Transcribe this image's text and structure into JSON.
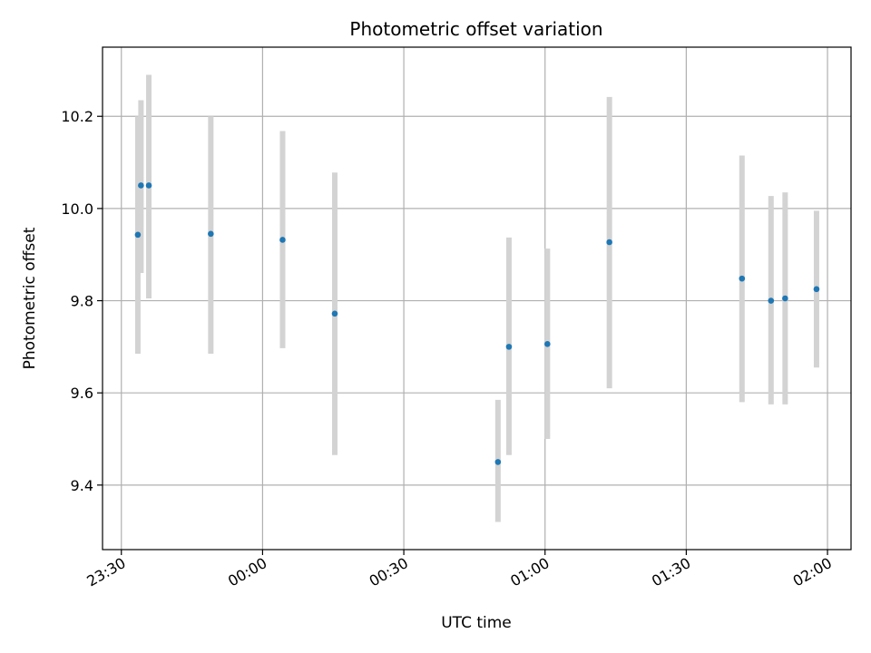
{
  "chart_data": {
    "type": "scatter",
    "title": "Photometric offset variation",
    "xlabel": "UTC time",
    "ylabel": "Photometric offset",
    "grid": true,
    "legend": "none",
    "xlim": [
      "23:26",
      "02:05"
    ],
    "ylim": [
      9.26,
      10.35
    ],
    "x_ticks": [
      "23:30",
      "00:00",
      "00:30",
      "01:00",
      "01:30",
      "02:00"
    ],
    "y_ticks": [
      "9.4",
      "9.6",
      "9.8",
      "10.0",
      "10.2"
    ],
    "series": [
      {
        "marker_color": "#1f77b4",
        "errorbar_color": "#d3d3d3",
        "points": [
          {
            "x": "23:33:30",
            "y": 9.943,
            "yerr_low": 9.685,
            "yerr_high": 10.2
          },
          {
            "x": "23:34:10",
            "y": 10.05,
            "yerr_low": 9.86,
            "yerr_high": 10.235
          },
          {
            "x": "23:35:50",
            "y": 10.05,
            "yerr_low": 9.805,
            "yerr_high": 10.29
          },
          {
            "x": "23:49:00",
            "y": 9.945,
            "yerr_low": 9.685,
            "yerr_high": 10.2
          },
          {
            "x": "00:04:15",
            "y": 9.932,
            "yerr_low": 9.697,
            "yerr_high": 10.168
          },
          {
            "x": "00:15:20",
            "y": 9.772,
            "yerr_low": 9.465,
            "yerr_high": 10.078
          },
          {
            "x": "00:50:00",
            "y": 9.45,
            "yerr_low": 9.32,
            "yerr_high": 9.585
          },
          {
            "x": "00:52:20",
            "y": 9.7,
            "yerr_low": 9.465,
            "yerr_high": 9.937
          },
          {
            "x": "01:00:30",
            "y": 9.706,
            "yerr_low": 9.5,
            "yerr_high": 9.913
          },
          {
            "x": "01:13:40",
            "y": 9.927,
            "yerr_low": 9.61,
            "yerr_high": 10.242
          },
          {
            "x": "01:41:50",
            "y": 9.848,
            "yerr_low": 9.58,
            "yerr_high": 10.115
          },
          {
            "x": "01:48:00",
            "y": 9.8,
            "yerr_low": 9.575,
            "yerr_high": 10.027
          },
          {
            "x": "01:51:00",
            "y": 9.805,
            "yerr_low": 9.575,
            "yerr_high": 10.035
          },
          {
            "x": "01:57:40",
            "y": 9.825,
            "yerr_low": 9.655,
            "yerr_high": 9.995
          }
        ]
      }
    ]
  }
}
